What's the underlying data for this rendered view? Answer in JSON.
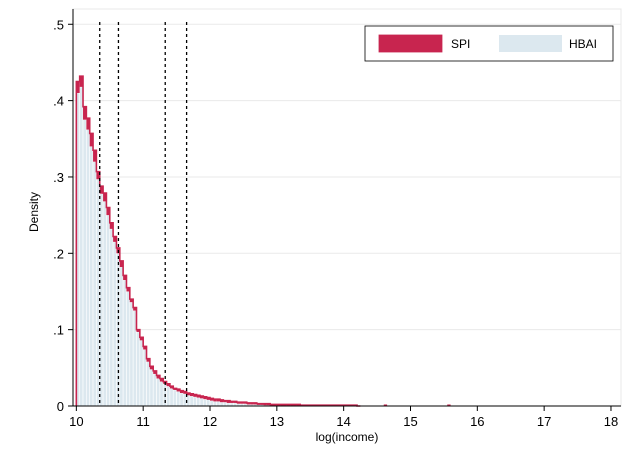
{
  "chart_data": {
    "type": "bar",
    "xlabel": "log(income)",
    "ylabel": "Density",
    "xlim": [
      9.95,
      18.15
    ],
    "ylim": [
      0,
      0.52
    ],
    "x_ticks": [
      10,
      11,
      12,
      13,
      14,
      15,
      16,
      17,
      18
    ],
    "x_tick_labels": [
      "10",
      "11",
      "12",
      "13",
      "14",
      "15",
      "16",
      "17",
      "18"
    ],
    "y_ticks": [
      0,
      0.1,
      0.2,
      0.3,
      0.4,
      0.5
    ],
    "y_tick_labels": [
      "0",
      ".1",
      ".2",
      ".3",
      ".4",
      ".5"
    ],
    "grid": true,
    "legend_position": "top-right",
    "bin_start": 10.0,
    "bin_width": 0.05,
    "reference_lines_x": [
      10.35,
      10.63,
      11.33,
      11.65
    ],
    "series": [
      {
        "name": "SPI",
        "color": "#c8254f",
        "values": [
          0.425,
          0.432,
          0.392,
          0.377,
          0.357,
          0.335,
          0.307,
          0.288,
          0.279,
          0.26,
          0.24,
          0.222,
          0.207,
          0.19,
          0.171,
          0.155,
          0.14,
          0.129,
          0.1,
          0.09,
          0.078,
          0.062,
          0.052,
          0.046,
          0.04,
          0.036,
          0.032,
          0.029,
          0.026,
          0.023,
          0.022,
          0.02,
          0.019,
          0.017,
          0.016,
          0.015,
          0.014,
          0.013,
          0.012,
          0.011,
          0.01,
          0.009,
          0.009,
          0.008,
          0.007,
          0.007,
          0.006,
          0.006,
          0.005,
          0.005,
          0.005,
          0.004,
          0.004,
          0.004,
          0.003,
          0.003,
          0.003,
          0.003,
          0.002,
          0.002,
          0.002,
          0.002,
          0.002,
          0.002,
          0.002,
          0.002,
          0.002,
          0.001,
          0.001,
          0.001,
          0.001,
          0.001,
          0.001,
          0.001,
          0.001,
          0.001,
          0.001,
          0.001,
          0.001,
          0.001,
          0.001,
          0.001,
          0.001,
          0.001,
          0,
          0,
          0,
          0,
          0,
          0,
          0,
          0,
          0.002,
          0,
          0,
          0,
          0,
          0,
          0,
          0,
          0,
          0,
          0,
          0,
          0,
          0,
          0,
          0,
          0,
          0,
          0,
          0.002,
          0,
          0,
          0,
          0,
          0,
          0,
          0,
          0,
          0,
          0,
          0,
          0,
          0,
          0,
          0,
          0,
          0,
          0,
          0,
          0,
          0,
          0,
          0,
          0,
          0,
          0,
          0,
          0,
          0,
          0,
          0,
          0,
          0,
          0,
          0,
          0,
          0,
          0,
          0,
          0,
          0,
          0,
          0,
          0,
          0,
          0,
          0,
          0,
          0,
          0,
          0,
          0,
          0,
          0,
          0,
          0,
          0,
          0,
          0.002,
          0,
          0,
          0,
          0,
          0,
          0,
          0,
          0,
          0,
          0.002,
          0,
          0,
          0,
          0,
          0,
          0,
          0,
          0,
          0,
          0.002,
          0,
          0,
          0,
          0,
          0,
          0,
          0,
          0,
          0,
          0,
          0,
          0,
          0.002
        ]
      },
      {
        "name": "HBAI",
        "color": "#dce8ef",
        "values": [
          0.41,
          0.418,
          0.375,
          0.362,
          0.34,
          0.32,
          0.297,
          0.278,
          0.268,
          0.25,
          0.232,
          0.215,
          0.2,
          0.182,
          0.165,
          0.15,
          0.136,
          0.125,
          0.097,
          0.086,
          0.074,
          0.058,
          0.048,
          0.042,
          0.036,
          0.032,
          0.029,
          0.026,
          0.023,
          0.021,
          0.019,
          0.017,
          0.016,
          0.014,
          0.013,
          0.012,
          0.011,
          0.01,
          0.009,
          0.008,
          0.007,
          0.006,
          0.006,
          0.005,
          0.005,
          0.004,
          0.004,
          0.004,
          0.003,
          0.003,
          0.003,
          0.002,
          0.002,
          0.002,
          0.002,
          0.002,
          0.001,
          0.001,
          0.001,
          0.001,
          0.001,
          0.001,
          0.001,
          0.001,
          0.001,
          0.001,
          0.001,
          0.001,
          0.001,
          0.001,
          0.001,
          0.001,
          0.001,
          0.001,
          0.001,
          0.001,
          0.001,
          0.001,
          0.001,
          0.001,
          0.001,
          0.001,
          0.001,
          0.001,
          0.001
        ]
      }
    ]
  }
}
